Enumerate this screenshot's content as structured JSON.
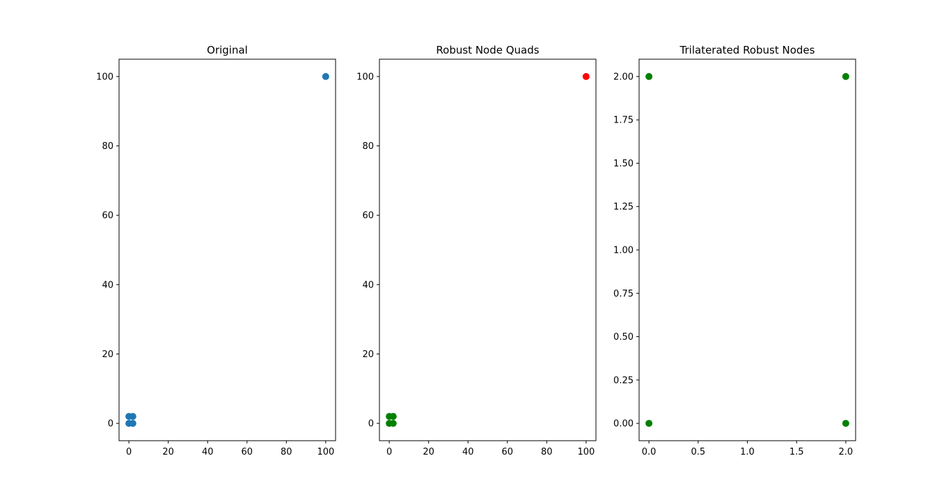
{
  "chart_data": [
    {
      "type": "scatter",
      "title": "Original",
      "xlabel": "",
      "ylabel": "",
      "xlim": [
        -5,
        105
      ],
      "ylim": [
        -5,
        105
      ],
      "xticks": [
        0,
        20,
        40,
        60,
        80,
        100
      ],
      "yticks": [
        0,
        20,
        40,
        60,
        80,
        100
      ],
      "x_tick_labels": [
        "0",
        "20",
        "40",
        "60",
        "80",
        "100"
      ],
      "y_tick_labels": [
        "0",
        "20",
        "40",
        "60",
        "80",
        "100"
      ],
      "grid": false,
      "series": [
        {
          "color": "#1f77b4",
          "points": [
            [
              0,
              0
            ],
            [
              2,
              0
            ],
            [
              0,
              2
            ],
            [
              2,
              2
            ],
            [
              100,
              100
            ]
          ]
        }
      ]
    },
    {
      "type": "scatter",
      "title": "Robust Node Quads",
      "xlabel": "",
      "ylabel": "",
      "xlim": [
        -5,
        105
      ],
      "ylim": [
        -5,
        105
      ],
      "xticks": [
        0,
        20,
        40,
        60,
        80,
        100
      ],
      "yticks": [
        0,
        20,
        40,
        60,
        80,
        100
      ],
      "x_tick_labels": [
        "0",
        "20",
        "40",
        "60",
        "80",
        "100"
      ],
      "y_tick_labels": [
        "0",
        "20",
        "40",
        "60",
        "80",
        "100"
      ],
      "grid": false,
      "series": [
        {
          "color": "#008000",
          "points": [
            [
              0,
              0
            ],
            [
              2,
              0
            ],
            [
              0,
              2
            ],
            [
              2,
              2
            ]
          ]
        },
        {
          "color": "#ff0000",
          "points": [
            [
              100,
              100
            ]
          ]
        }
      ]
    },
    {
      "type": "scatter",
      "title": "Trilaterated Robust Nodes",
      "xlabel": "",
      "ylabel": "",
      "xlim": [
        -0.1,
        2.1
      ],
      "ylim": [
        -0.1,
        2.1
      ],
      "xticks": [
        0,
        0.5,
        1.0,
        1.5,
        2.0
      ],
      "yticks": [
        0,
        0.25,
        0.5,
        0.75,
        1.0,
        1.25,
        1.5,
        1.75,
        2.0
      ],
      "x_tick_labels": [
        "0.0",
        "0.5",
        "1.0",
        "1.5",
        "2.0"
      ],
      "y_tick_labels": [
        "0.00",
        "0.25",
        "0.50",
        "0.75",
        "1.00",
        "1.25",
        "1.50",
        "1.75",
        "2.00"
      ],
      "grid": false,
      "series": [
        {
          "color": "#008000",
          "points": [
            [
              0,
              0
            ],
            [
              2,
              0
            ],
            [
              0,
              2
            ],
            [
              2,
              2
            ]
          ]
        }
      ]
    }
  ]
}
